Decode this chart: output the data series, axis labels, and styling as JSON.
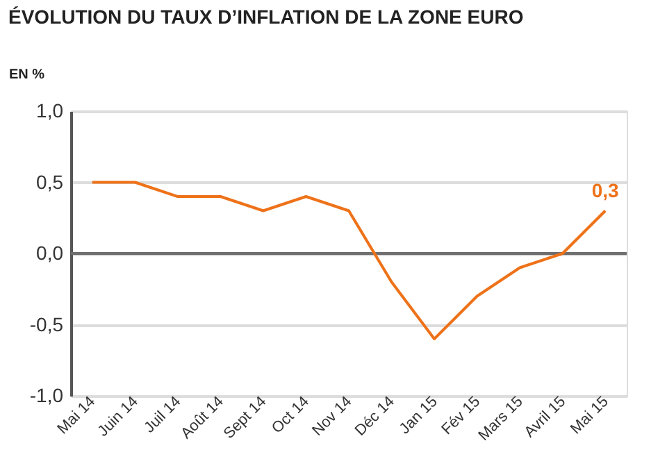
{
  "chart_data": {
    "type": "line",
    "title": "ÉVOLUTION DU TAUX D’INFLATION DE LA ZONE EURO",
    "ylabel": "EN %",
    "categories": [
      "Mai 14",
      "Juin 14",
      "Juil 14",
      "Août 14",
      "Sept 14",
      "Oct 14",
      "Nov 14",
      "Déc 14",
      "Jan 15",
      "Fév 15",
      "Mars 15",
      "Avril 15",
      "Mai 15"
    ],
    "series": [
      {
        "color": "#ee7219",
        "values": [
          0.5,
          0.5,
          0.4,
          0.4,
          0.3,
          0.4,
          0.3,
          -0.2,
          -0.6,
          -0.3,
          -0.1,
          0.0,
          0.3
        ],
        "value_labels": [
          null,
          null,
          null,
          null,
          null,
          null,
          null,
          null,
          null,
          null,
          null,
          null,
          "0,3"
        ]
      }
    ],
    "ylim": [
      -1.0,
      1.0
    ],
    "yticks": [
      {
        "value": -1.0,
        "label": "-1,0"
      },
      {
        "value": -0.5,
        "label": "-0,5"
      },
      {
        "value": 0.0,
        "label": "0,0"
      },
      {
        "value": 0.5,
        "label": "0,5"
      },
      {
        "value": 1.0,
        "label": "1,0"
      }
    ],
    "ref_lines": [
      {
        "axis": "y",
        "value": 0.0,
        "color": "#6e6e6e"
      }
    ],
    "grid": "y",
    "marker": "none",
    "line_style": "solid"
  }
}
